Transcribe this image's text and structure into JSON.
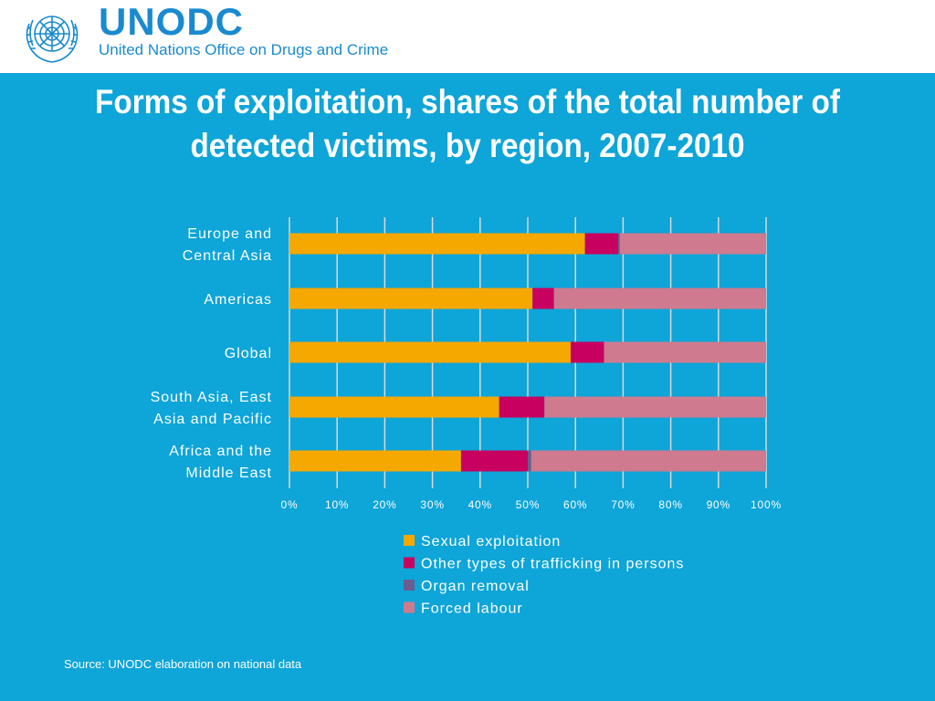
{
  "header": {
    "org_short": "UNODC",
    "org_full": "United Nations Office on Drugs and Crime",
    "logo_icon": "un-emblem-icon"
  },
  "title": "Forms of exploitation, shares of the total number of detected victims, by region, 2007-2010",
  "title_lines": [
    "Forms of exploitation, shares of the total number of",
    "detected victims, by region, 2007-2010"
  ],
  "source": "Source: UNODC elaboration on national data",
  "colors": {
    "background": "#0ea5d8",
    "sexual": "#f5a800",
    "other": "#c8005f",
    "organ": "#6a5d8f",
    "forced": "#cf7a8e"
  },
  "chart_data": {
    "type": "bar",
    "orientation": "horizontal",
    "stacked": true,
    "categories": [
      [
        "Europe and",
        "Central Asia"
      ],
      [
        "Americas"
      ],
      [
        "Global"
      ],
      [
        "South Asia, East",
        "Asia and Pacific"
      ],
      [
        "Africa and the",
        "Middle East"
      ]
    ],
    "series": [
      {
        "name": "Sexual exploitation",
        "color": "#f5a800",
        "values": [
          62,
          51,
          59,
          44,
          36
        ]
      },
      {
        "name": "Other types of trafficking in persons",
        "color": "#c8005f",
        "values": [
          7,
          4.5,
          7,
          9.5,
          14
        ]
      },
      {
        "name": "Organ removal",
        "color": "#6a5d8f",
        "values": [
          0.3,
          0,
          0,
          0,
          0.7
        ]
      },
      {
        "name": "Forced labour",
        "color": "#cf7a8e",
        "values": [
          30.7,
          44.5,
          34,
          46.5,
          49.3
        ]
      }
    ],
    "xlim": [
      0,
      100
    ],
    "x_ticks": [
      "0%",
      "10%",
      "20%",
      "30%",
      "40%",
      "50%",
      "60%",
      "70%",
      "80%",
      "90%",
      "100%"
    ],
    "grid": true,
    "legend_position": "bottom"
  }
}
